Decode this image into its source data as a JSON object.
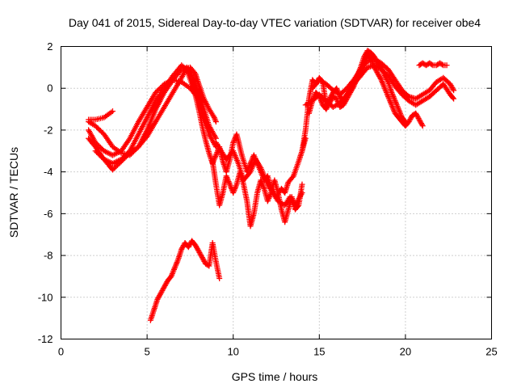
{
  "chart_data": {
    "type": "scatter",
    "title": "Day 041 of 2015, Sidereal Day-to-day VTEC variation (SDTVAR) for receiver obe4",
    "xlabel": "GPS time / hours",
    "ylabel": "SDTVAR / TECUs",
    "xlim": [
      0,
      25
    ],
    "ylim": [
      -12,
      2
    ],
    "x_ticks": [
      0,
      5,
      10,
      15,
      20,
      25
    ],
    "y_ticks": [
      -12,
      -10,
      -8,
      -6,
      -4,
      -2,
      0,
      2
    ],
    "x_tick_labels": [
      "0",
      "5",
      "10",
      "15",
      "20",
      "25"
    ],
    "y_tick_labels": [
      "-12",
      "-10",
      "-8",
      "-6",
      "-4",
      "-2",
      "0",
      "2"
    ],
    "grid": true,
    "legend": "none",
    "marker": "plus",
    "color": "#ff0000",
    "series": [
      {
        "x": [
          1.6,
          2.0,
          2.5,
          3.0,
          3.5,
          4.0,
          4.5,
          5.0,
          5.5,
          6.0,
          6.5,
          7.0,
          7.5,
          7.8,
          8.0,
          8.3,
          8.6,
          8.9,
          9.0
        ],
        "y": [
          -1.6,
          -1.8,
          -2.2,
          -2.8,
          -3.1,
          -3.2,
          -2.8,
          -2.0,
          -1.0,
          -0.2,
          0.4,
          0.9,
          1.0,
          0.7,
          0.2,
          -0.5,
          -1.0,
          -1.4,
          -1.6
        ]
      },
      {
        "x": [
          1.6,
          2.0,
          2.4,
          2.8,
          3.0,
          3.5,
          4.0,
          4.5,
          5.0,
          5.5,
          6.0,
          6.5,
          7.0,
          7.3,
          7.6,
          8.0,
          8.3,
          8.6,
          9.0
        ],
        "y": [
          -2.4,
          -2.8,
          -3.3,
          -3.7,
          -3.9,
          -3.5,
          -3.1,
          -2.8,
          -2.3,
          -1.6,
          -0.9,
          -0.2,
          0.5,
          1.0,
          0.6,
          -0.3,
          -1.0,
          -1.8,
          -2.4
        ]
      },
      {
        "x": [
          1.6,
          2.0,
          2.5,
          3.0,
          3.5,
          4.0,
          4.5,
          5.0,
          5.5,
          6.0,
          6.5,
          7.0,
          7.5,
          7.8,
          8.1,
          8.4,
          8.7
        ],
        "y": [
          -2.0,
          -2.6,
          -3.0,
          -3.2,
          -3.0,
          -2.4,
          -1.6,
          -0.9,
          -0.2,
          0.2,
          0.4,
          0.3,
          0.0,
          -0.3,
          -0.9,
          -1.6,
          -2.2
        ]
      },
      {
        "x": [
          1.6,
          2.0,
          2.5,
          3.0
        ],
        "y": [
          -1.5,
          -1.5,
          -1.4,
          -1.1
        ]
      },
      {
        "x": [
          2.0,
          2.5,
          3.0,
          3.5,
          4.0,
          4.5,
          5.0,
          5.5,
          6.0,
          6.5,
          7.0,
          7.3,
          7.6,
          8.0,
          8.3,
          8.6,
          9.0
        ],
        "y": [
          -3.0,
          -3.4,
          -3.6,
          -3.4,
          -3.0,
          -2.2,
          -1.4,
          -0.6,
          0.0,
          0.6,
          1.1,
          0.9,
          0.2,
          -0.6,
          -1.4,
          -2.2,
          -2.8
        ]
      },
      {
        "x": [
          7.6,
          7.8,
          8.0,
          8.2,
          8.4,
          8.6,
          8.8,
          9.0,
          9.2,
          9.4,
          9.6,
          9.8,
          10.0,
          10.2,
          10.5,
          10.8,
          11.0,
          11.2,
          11.5,
          11.8,
          12.0,
          12.2,
          12.5,
          12.8,
          13.0,
          13.2,
          13.5,
          13.8,
          14.0,
          14.2
        ],
        "y": [
          0.4,
          -0.3,
          -1.0,
          -1.8,
          -2.5,
          -3.1,
          -3.6,
          -3.2,
          -2.8,
          -3.5,
          -4.0,
          -3.4,
          -2.6,
          -2.2,
          -3.2,
          -4.0,
          -3.6,
          -3.2,
          -3.8,
          -4.4,
          -4.2,
          -4.8,
          -5.2,
          -4.8,
          -5.0,
          -4.5,
          -4.2,
          -3.5,
          -3.0,
          -2.4
        ]
      },
      {
        "x": [
          8.8,
          9.0,
          9.2,
          9.4,
          9.6,
          9.8,
          10.0,
          10.2,
          10.4,
          10.6,
          10.8,
          11.0,
          11.2,
          11.4,
          11.6,
          11.8,
          12.0,
          12.2,
          12.4,
          12.6,
          12.8,
          13.0,
          13.2,
          13.4,
          13.6,
          13.8,
          14.0
        ],
        "y": [
          -3.5,
          -4.6,
          -5.6,
          -5.0,
          -4.2,
          -4.6,
          -5.0,
          -4.6,
          -4.0,
          -4.6,
          -5.4,
          -6.6,
          -6.0,
          -5.0,
          -4.4,
          -4.8,
          -5.4,
          -5.0,
          -4.4,
          -5.0,
          -5.8,
          -6.4,
          -5.8,
          -5.2,
          -5.8,
          -5.6,
          -4.6
        ]
      },
      {
        "x": [
          9.0,
          9.3,
          9.6,
          10.0,
          10.3,
          10.6,
          11.0,
          11.3,
          11.6,
          12.0,
          12.3,
          12.6,
          13.0,
          13.3,
          13.6,
          14.0
        ],
        "y": [
          -2.6,
          -3.0,
          -3.4,
          -3.0,
          -3.6,
          -4.4,
          -4.0,
          -3.4,
          -3.8,
          -4.6,
          -5.0,
          -5.4,
          -5.6,
          -5.2,
          -5.6,
          -5.0
        ]
      },
      {
        "x": [
          5.2,
          5.4,
          5.6,
          5.8,
          6.0,
          6.2,
          6.4,
          6.6,
          6.8,
          7.0,
          7.2,
          7.4,
          7.6,
          7.8,
          8.0,
          8.2,
          8.4,
          8.6,
          8.8,
          9.0,
          9.2
        ],
        "y": [
          -11.1,
          -10.6,
          -10.1,
          -9.8,
          -9.5,
          -9.2,
          -9.0,
          -8.6,
          -8.2,
          -7.7,
          -7.4,
          -7.6,
          -7.3,
          -7.5,
          -7.8,
          -8.1,
          -8.4,
          -8.5,
          -7.4,
          -8.3,
          -9.1
        ]
      },
      {
        "x": [
          14.0,
          14.2,
          14.4,
          14.6,
          14.8,
          15.0,
          15.2,
          15.4,
          15.6,
          15.8,
          16.0,
          16.2,
          16.4,
          16.6,
          16.8,
          17.0,
          17.2,
          17.4,
          17.6,
          17.8,
          18.0,
          18.2,
          18.4,
          18.6,
          18.8,
          19.0,
          19.2,
          19.4,
          19.6,
          19.8,
          20.0
        ],
        "y": [
          -3.0,
          -2.0,
          -0.5,
          0.4,
          0.2,
          0.5,
          0.3,
          -0.8,
          -0.5,
          -0.2,
          0.0,
          -0.4,
          -0.6,
          -0.3,
          -0.1,
          0.3,
          0.6,
          1.0,
          1.5,
          1.8,
          1.7,
          1.5,
          1.2,
          1.0,
          0.6,
          0.3,
          -0.2,
          -0.6,
          -1.0,
          -1.4,
          -1.6
        ]
      },
      {
        "x": [
          14.4,
          14.6,
          14.8,
          15.0,
          15.2,
          15.4,
          15.6,
          15.8,
          16.0,
          16.2,
          16.4,
          16.6,
          16.8,
          17.0,
          17.2,
          17.4,
          17.6,
          17.8,
          18.0,
          18.2,
          18.4,
          18.6,
          18.8,
          19.0,
          19.2,
          19.4,
          19.6,
          19.8,
          20.0,
          20.2,
          20.4,
          20.6,
          20.8,
          21.0
        ],
        "y": [
          -1.2,
          -0.6,
          -0.2,
          -0.4,
          -0.8,
          -1.0,
          -0.7,
          -0.4,
          -0.5,
          -0.9,
          -0.8,
          -0.5,
          -0.2,
          0.1,
          0.5,
          0.8,
          1.2,
          1.6,
          1.4,
          1.0,
          0.7,
          0.4,
          0.0,
          -0.4,
          -0.8,
          -1.2,
          -1.4,
          -1.6,
          -1.8,
          -1.6,
          -1.3,
          -1.2,
          -1.5,
          -1.8
        ]
      },
      {
        "x": [
          14.6,
          15.0,
          15.4,
          15.8,
          16.2,
          16.6,
          17.0,
          17.4,
          17.8,
          18.2,
          18.6,
          19.0,
          19.4,
          19.8,
          20.2,
          20.6,
          21.0,
          21.4,
          21.8,
          22.2,
          22.6,
          22.8
        ],
        "y": [
          0.0,
          0.4,
          0.2,
          -0.1,
          -0.3,
          0.0,
          0.4,
          0.9,
          1.3,
          1.4,
          1.2,
          0.9,
          0.4,
          -0.1,
          -0.4,
          -0.5,
          -0.3,
          -0.1,
          0.3,
          0.5,
          0.2,
          -0.1
        ]
      },
      {
        "x": [
          14.2,
          14.6,
          15.0,
          15.4,
          15.8,
          16.2,
          16.6,
          17.0,
          17.4,
          17.8,
          18.2,
          18.6,
          19.0,
          19.4,
          19.8,
          20.2,
          20.6,
          21.0,
          21.4,
          21.8,
          22.2,
          22.6,
          22.8
        ],
        "y": [
          -0.8,
          -0.6,
          -0.3,
          -0.6,
          -0.9,
          -0.7,
          -0.3,
          0.2,
          0.6,
          1.0,
          1.1,
          0.9,
          0.6,
          0.1,
          -0.3,
          -0.6,
          -0.8,
          -0.6,
          -0.4,
          -0.1,
          0.2,
          -0.3,
          -0.5
        ]
      },
      {
        "x": [
          20.8,
          21.0,
          21.2,
          21.4,
          21.6,
          21.8,
          22.0,
          22.2,
          22.4
        ],
        "y": [
          1.1,
          1.2,
          1.1,
          1.2,
          1.1,
          1.1,
          1.2,
          1.1,
          1.1
        ]
      }
    ]
  }
}
